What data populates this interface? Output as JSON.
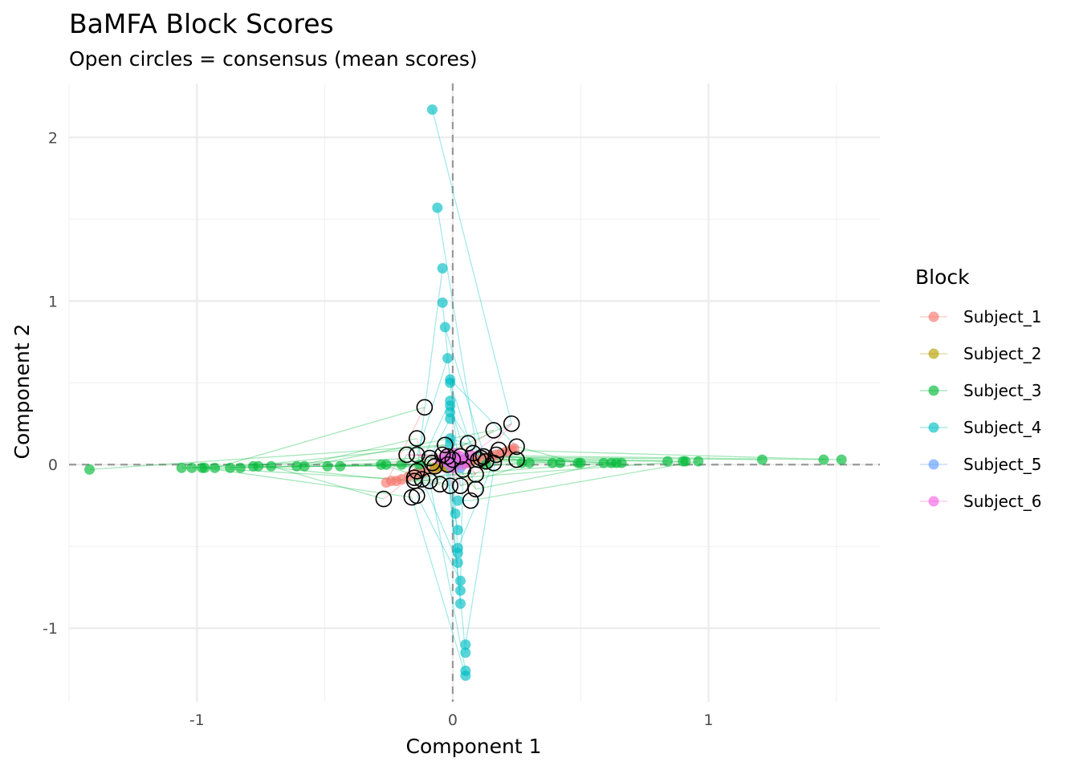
{
  "chart_data": {
    "type": "scatter",
    "title": "BaMFA Block Scores",
    "subtitle": "Open circles = consensus (mean scores)",
    "xlabel": "Component 1",
    "ylabel": "Component 2",
    "xlim": [
      -1.5,
      1.67
    ],
    "ylim": [
      -1.45,
      2.33
    ],
    "x_ticks": [
      -1,
      0,
      1
    ],
    "x_tick_labels": [
      "-1",
      "0",
      "1"
    ],
    "y_ticks": [
      -1,
      0,
      1,
      2
    ],
    "y_tick_labels": [
      "-1",
      "0",
      "1",
      "2"
    ],
    "grid": true,
    "reference_lines": {
      "x": 0,
      "y": 0,
      "style": "dashed"
    },
    "legend": {
      "title": "Block",
      "position": "right"
    },
    "series": [
      {
        "name": "Subject_1",
        "color": "#F8766D",
        "points": [
          [
            -0.26,
            -0.11
          ],
          [
            -0.24,
            -0.1
          ],
          [
            -0.22,
            -0.1
          ],
          [
            -0.2,
            -0.09
          ],
          [
            -0.17,
            -0.07
          ],
          [
            -0.14,
            -0.05
          ],
          [
            -0.11,
            -0.04
          ],
          [
            -0.07,
            -0.02
          ],
          [
            -0.04,
            -0.01
          ],
          [
            0.0,
            0.0
          ],
          [
            0.03,
            0.01
          ],
          [
            0.06,
            0.02
          ],
          [
            0.09,
            0.03
          ],
          [
            0.12,
            0.04
          ],
          [
            0.15,
            0.05
          ],
          [
            0.17,
            0.06
          ],
          [
            0.19,
            0.07
          ],
          [
            0.21,
            0.08
          ],
          [
            0.23,
            0.09
          ],
          [
            0.24,
            0.1
          ]
        ]
      },
      {
        "name": "Subject_2",
        "color": "#B79F00",
        "points": [
          [
            -0.07,
            -0.02
          ],
          [
            -0.05,
            -0.01
          ],
          [
            -0.03,
            -0.01
          ],
          [
            -0.01,
            0.0
          ],
          [
            0.01,
            0.0
          ],
          [
            0.03,
            0.01
          ],
          [
            0.05,
            0.01
          ],
          [
            0.07,
            0.02
          ],
          [
            0.02,
            0.02
          ],
          [
            -0.02,
            -0.02
          ]
        ]
      },
      {
        "name": "Subject_3",
        "color": "#00BA38",
        "points": [
          [
            -1.42,
            -0.03
          ],
          [
            -1.06,
            -0.02
          ],
          [
            -1.02,
            -0.02
          ],
          [
            -0.98,
            -0.02
          ],
          [
            -0.97,
            -0.02
          ],
          [
            -0.93,
            -0.02
          ],
          [
            -0.87,
            -0.02
          ],
          [
            -0.83,
            -0.02
          ],
          [
            -0.78,
            -0.01
          ],
          [
            -0.76,
            -0.01
          ],
          [
            -0.71,
            -0.01
          ],
          [
            -0.61,
            -0.01
          ],
          [
            -0.58,
            -0.01
          ],
          [
            -0.49,
            -0.01
          ],
          [
            -0.44,
            -0.01
          ],
          [
            -0.28,
            0.0
          ],
          [
            -0.26,
            0.0
          ],
          [
            -0.2,
            0.0
          ],
          [
            -0.13,
            0.0
          ],
          [
            0.13,
            0.0
          ],
          [
            0.27,
            0.01
          ],
          [
            0.3,
            0.01
          ],
          [
            0.39,
            0.01
          ],
          [
            0.42,
            0.01
          ],
          [
            0.49,
            0.01
          ],
          [
            0.5,
            0.01
          ],
          [
            0.59,
            0.01
          ],
          [
            0.62,
            0.01
          ],
          [
            0.64,
            0.01
          ],
          [
            0.66,
            0.01
          ],
          [
            0.84,
            0.02
          ],
          [
            0.9,
            0.02
          ],
          [
            0.91,
            0.02
          ],
          [
            0.96,
            0.02
          ],
          [
            1.21,
            0.03
          ],
          [
            1.45,
            0.03
          ],
          [
            1.52,
            0.03
          ]
        ]
      },
      {
        "name": "Subject_4",
        "color": "#00BFC4",
        "points": [
          [
            -0.08,
            2.17
          ],
          [
            -0.06,
            1.57
          ],
          [
            -0.04,
            1.2
          ],
          [
            -0.04,
            0.99
          ],
          [
            -0.03,
            0.84
          ],
          [
            -0.02,
            0.65
          ],
          [
            -0.01,
            0.52
          ],
          [
            -0.01,
            0.5
          ],
          [
            -0.01,
            0.39
          ],
          [
            -0.01,
            0.36
          ],
          [
            -0.01,
            0.32
          ],
          [
            -0.01,
            0.28
          ],
          [
            -0.01,
            0.16
          ],
          [
            -0.01,
            0.13
          ],
          [
            0.0,
            0.05
          ],
          [
            0.02,
            -0.22
          ],
          [
            0.01,
            -0.3
          ],
          [
            0.02,
            -0.4
          ],
          [
            0.02,
            -0.51
          ],
          [
            0.02,
            -0.54
          ],
          [
            0.02,
            -0.6
          ],
          [
            0.03,
            -0.71
          ],
          [
            0.03,
            -0.77
          ],
          [
            0.03,
            -0.85
          ],
          [
            0.05,
            -1.1
          ],
          [
            0.05,
            -1.15
          ],
          [
            0.05,
            -1.26
          ],
          [
            0.05,
            -1.29
          ]
        ]
      },
      {
        "name": "Subject_5",
        "color": "#619CFF",
        "points": [
          [
            -0.03,
            0.02
          ],
          [
            0.0,
            0.03
          ],
          [
            0.02,
            0.01
          ],
          [
            0.04,
            0.03
          ],
          [
            -0.01,
            -0.01
          ],
          [
            0.03,
            -0.02
          ],
          [
            0.05,
            0.04
          ],
          [
            0.01,
            0.05
          ]
        ]
      },
      {
        "name": "Subject_6",
        "color": "#F564E3",
        "points": [
          [
            -0.05,
            0.03
          ],
          [
            -0.03,
            0.06
          ],
          [
            -0.01,
            0.04
          ],
          [
            0.01,
            0.07
          ],
          [
            0.03,
            0.05
          ],
          [
            0.05,
            0.03
          ],
          [
            0.07,
            0.06
          ],
          [
            -0.02,
            0.01
          ],
          [
            0.0,
            -0.02
          ],
          [
            0.02,
            0.02
          ],
          [
            0.04,
            0.0
          ],
          [
            0.06,
            0.01
          ]
        ]
      }
    ],
    "consensus": [
      [
        -0.11,
        0.35
      ],
      [
        -0.14,
        0.16
      ],
      [
        -0.18,
        0.06
      ],
      [
        -0.14,
        0.06
      ],
      [
        -0.09,
        0.04
      ],
      [
        -0.04,
        0.06
      ],
      [
        -0.03,
        0.12
      ],
      [
        0.06,
        0.13
      ],
      [
        0.16,
        0.21
      ],
      [
        0.23,
        0.25
      ],
      [
        0.25,
        0.11
      ],
      [
        0.25,
        0.03
      ],
      [
        0.18,
        0.09
      ],
      [
        0.17,
        0.06
      ],
      [
        0.16,
        0.01
      ],
      [
        0.12,
        0.05
      ],
      [
        0.1,
        0.03
      ],
      [
        0.08,
        0.07
      ],
      [
        0.03,
        0.05
      ],
      [
        0.0,
        0.03
      ],
      [
        -0.02,
        0.0
      ],
      [
        -0.07,
        -0.01
      ],
      [
        -0.08,
        0.01
      ],
      [
        -0.14,
        -0.04
      ],
      [
        -0.15,
        -0.08
      ],
      [
        -0.15,
        -0.1
      ],
      [
        -0.12,
        -0.09
      ],
      [
        -0.09,
        -0.1
      ],
      [
        -0.05,
        -0.12
      ],
      [
        -0.01,
        -0.13
      ],
      [
        0.03,
        -0.13
      ],
      [
        0.09,
        -0.15
      ],
      [
        0.07,
        -0.22
      ],
      [
        -0.14,
        -0.19
      ],
      [
        -0.16,
        -0.2
      ],
      [
        -0.27,
        -0.21
      ],
      [
        0.09,
        -0.06
      ],
      [
        0.13,
        0.02
      ],
      [
        0.11,
        0.04
      ],
      [
        -0.02,
        0.05
      ],
      [
        0.04,
        -0.03
      ]
    ]
  }
}
